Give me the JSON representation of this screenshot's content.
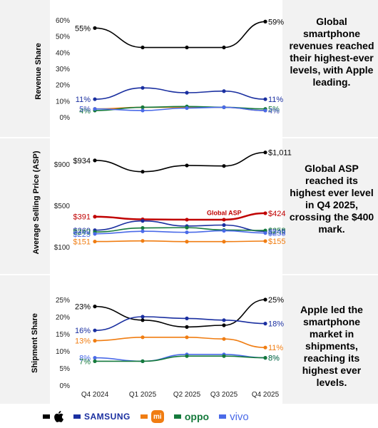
{
  "quarters": [
    "Q4 2024",
    "Q1 2025",
    "Q2 2025",
    "Q3 2025",
    "Q4 2025"
  ],
  "brand_colors": {
    "apple": "#000000",
    "samsung": "#1a2fa0",
    "xiaomi": "#f07d12",
    "oppo": "#157a3c",
    "vivo": "#4a6ae8",
    "asp": "#c00000"
  },
  "legend": [
    {
      "brand": "apple",
      "label": "",
      "icon": "apple-logo-icon"
    },
    {
      "brand": "samsung",
      "label": "SAMSUNG",
      "icon": ""
    },
    {
      "brand": "xiaomi",
      "label": "mi",
      "icon": "xiaomi-logo-icon"
    },
    {
      "brand": "oppo",
      "label": "oppo",
      "icon": ""
    },
    {
      "brand": "vivo",
      "label": "vivo",
      "icon": ""
    }
  ],
  "chart_data": [
    {
      "type": "line",
      "ylabel": "Revenue Share",
      "yticks": [
        "0%",
        "10%",
        "20%",
        "30%",
        "40%",
        "50%",
        "60%"
      ],
      "ylim": [
        0,
        60
      ],
      "caption": "Global smartphone revenues reached their highest-ever levels, with Apple leading.",
      "series": [
        {
          "brand": "apple",
          "values": [
            55,
            43,
            43,
            43,
            59
          ],
          "start_label": "55%",
          "end_label": "59%"
        },
        {
          "brand": "samsung",
          "values": [
            11,
            18,
            15,
            16,
            11
          ],
          "start_label": "11%",
          "end_label": "11%"
        },
        {
          "brand": "xiaomi",
          "values": [
            5,
            6,
            6,
            6,
            4
          ],
          "start_label": "5%",
          "end_label": "4%"
        },
        {
          "brand": "oppo",
          "values": [
            4,
            6,
            6.5,
            6,
            5
          ],
          "start_label": "4%",
          "end_label": "5%"
        },
        {
          "brand": "vivo",
          "values": [
            5,
            4,
            5.5,
            6,
            4
          ],
          "start_label": "5%",
          "end_label": "4%"
        }
      ]
    },
    {
      "type": "line",
      "ylabel": "Average Selling Price (ASP)",
      "yticks": [
        "$100",
        "$500",
        "$900"
      ],
      "ylim": [
        100,
        1050
      ],
      "caption": "Global ASP reached its highest ever level in Q4 2025, crossing the $400 mark.",
      "annotation": "Global ASP",
      "series": [
        {
          "brand": "apple",
          "values": [
            934,
            825,
            885,
            880,
            1011
          ],
          "start_label": "$934",
          "end_label": "$1,011"
        },
        {
          "brand": "asp",
          "values": [
            391,
            365,
            362,
            362,
            424
          ],
          "start_label": "$391",
          "end_label": "$424"
        },
        {
          "brand": "samsung",
          "values": [
            260,
            350,
            300,
            310,
            249
          ],
          "start_label": "$260",
          "end_label": "$249"
        },
        {
          "brand": "oppo",
          "values": [
            243,
            282,
            285,
            262,
            258
          ],
          "start_label": "$243",
          "end_label": "$258"
        },
        {
          "brand": "vivo",
          "values": [
            225,
            250,
            240,
            255,
            233
          ],
          "start_label": "$225",
          "end_label": "$233"
        },
        {
          "brand": "xiaomi",
          "values": [
            151,
            157,
            150,
            150,
            155
          ],
          "start_label": "$151",
          "end_label": "$155"
        }
      ]
    },
    {
      "type": "line",
      "ylabel": "Shipment Share",
      "yticks": [
        "0%",
        "5%",
        "10%",
        "15%",
        "20%",
        "25%"
      ],
      "ylim": [
        0,
        25
      ],
      "caption": "Apple led the smartphone market in shipments, reaching its highest ever levels.",
      "series": [
        {
          "brand": "apple",
          "values": [
            23,
            19,
            17,
            17.5,
            25
          ],
          "start_label": "23%",
          "end_label": "25%"
        },
        {
          "brand": "samsung",
          "values": [
            16,
            20,
            19.5,
            19,
            18
          ],
          "start_label": "16%",
          "end_label": "18%"
        },
        {
          "brand": "xiaomi",
          "values": [
            13,
            14,
            14,
            13.5,
            11
          ],
          "start_label": "13%",
          "end_label": "11%"
        },
        {
          "brand": "vivo",
          "values": [
            8,
            7,
            9,
            9,
            8
          ],
          "start_label": "8%",
          "end_label": "8%"
        },
        {
          "brand": "oppo",
          "values": [
            7,
            7,
            8.5,
            8.5,
            8
          ],
          "start_label": "7%",
          "end_label": "8%"
        }
      ]
    }
  ]
}
